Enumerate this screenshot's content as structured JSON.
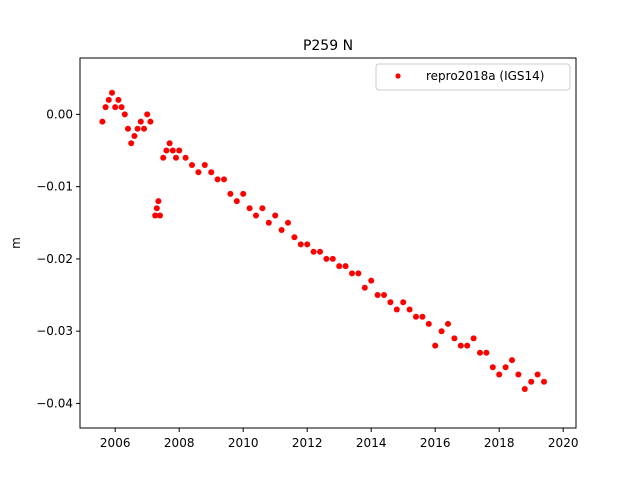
{
  "chart_data": {
    "type": "scatter",
    "title": "P259 N",
    "xlabel": "",
    "ylabel": "m",
    "xlim": [
      2004.9,
      2020.4
    ],
    "ylim": [
      -0.0434,
      0.0078
    ],
    "x_ticks": [
      2006,
      2008,
      2010,
      2012,
      2014,
      2016,
      2018,
      2020
    ],
    "x_tick_labels": [
      "2006",
      "2008",
      "2010",
      "2012",
      "2014",
      "2016",
      "2018",
      "2020"
    ],
    "y_ticks": [
      0.0,
      -0.01,
      -0.02,
      -0.03,
      -0.04
    ],
    "y_tick_labels": [
      "0.00",
      "−0.01",
      "−0.02",
      "−0.03",
      "−0.04"
    ],
    "grid": false,
    "legend_position": "top-right",
    "series": [
      {
        "name": "repro2018a (IGS14)",
        "color": "#ff0000",
        "marker": "dot",
        "x": [
          2005.6,
          2005.7,
          2005.8,
          2005.9,
          2006.0,
          2006.1,
          2006.2,
          2006.3,
          2006.4,
          2006.5,
          2006.6,
          2006.7,
          2006.8,
          2006.9,
          2007.0,
          2007.1,
          2007.25,
          2007.3,
          2007.35,
          2007.4,
          2007.5,
          2007.6,
          2007.7,
          2007.8,
          2007.9,
          2008.0,
          2008.2,
          2008.4,
          2008.6,
          2008.8,
          2009.0,
          2009.2,
          2009.4,
          2009.6,
          2009.8,
          2010.0,
          2010.2,
          2010.4,
          2010.6,
          2010.8,
          2011.0,
          2011.2,
          2011.4,
          2011.6,
          2011.8,
          2012.0,
          2012.2,
          2012.4,
          2012.6,
          2012.8,
          2013.0,
          2013.2,
          2013.4,
          2013.6,
          2013.8,
          2014.0,
          2014.2,
          2014.4,
          2014.6,
          2014.8,
          2015.0,
          2015.2,
          2015.4,
          2015.6,
          2015.8,
          2016.0,
          2016.2,
          2016.4,
          2016.6,
          2016.8,
          2017.0,
          2017.2,
          2017.4,
          2017.6,
          2017.8,
          2018.0,
          2018.2,
          2018.4,
          2018.6,
          2018.8,
          2019.0,
          2019.2,
          2019.4
        ],
        "values": [
          -0.001,
          0.001,
          0.002,
          0.003,
          0.001,
          0.002,
          0.001,
          0.0,
          -0.002,
          -0.004,
          -0.003,
          -0.002,
          -0.001,
          -0.002,
          0.0,
          -0.001,
          -0.014,
          -0.013,
          -0.012,
          -0.014,
          -0.006,
          -0.005,
          -0.004,
          -0.005,
          -0.006,
          -0.005,
          -0.006,
          -0.007,
          -0.008,
          -0.007,
          -0.008,
          -0.009,
          -0.009,
          -0.011,
          -0.012,
          -0.011,
          -0.013,
          -0.014,
          -0.013,
          -0.015,
          -0.014,
          -0.016,
          -0.015,
          -0.017,
          -0.018,
          -0.018,
          -0.019,
          -0.019,
          -0.02,
          -0.02,
          -0.021,
          -0.021,
          -0.022,
          -0.022,
          -0.024,
          -0.023,
          -0.025,
          -0.025,
          -0.026,
          -0.027,
          -0.026,
          -0.027,
          -0.028,
          -0.028,
          -0.029,
          -0.032,
          -0.03,
          -0.029,
          -0.031,
          -0.032,
          -0.032,
          -0.031,
          -0.033,
          -0.033,
          -0.035,
          -0.036,
          -0.035,
          -0.034,
          -0.036,
          -0.038,
          -0.037,
          -0.036,
          -0.037
        ]
      }
    ]
  }
}
